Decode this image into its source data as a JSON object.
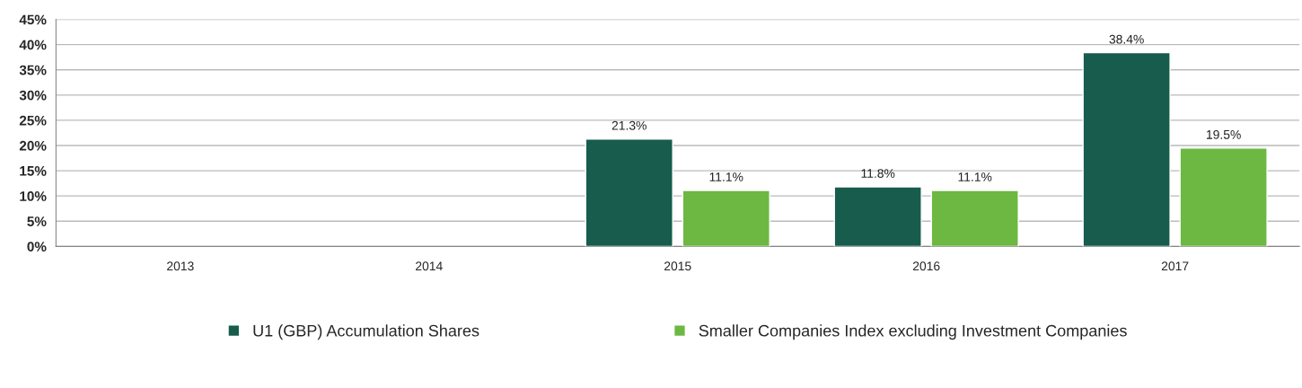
{
  "chart_data": {
    "type": "bar",
    "categories": [
      "2013",
      "2014",
      "2015",
      "2016",
      "2017"
    ],
    "series": [
      {
        "name": "U1 (GBP) Accumulation Shares",
        "color": "#175c4c",
        "values": [
          null,
          null,
          21.3,
          11.8,
          38.4
        ],
        "value_labels": [
          null,
          null,
          "21.3%",
          "11.8%",
          "38.4%"
        ]
      },
      {
        "name": "Smaller Companies Index excluding Investment Companies",
        "color": "#6db843",
        "values": [
          null,
          null,
          11.1,
          11.1,
          19.5
        ],
        "value_labels": [
          null,
          null,
          "11.1%",
          "11.1%",
          "19.5%"
        ]
      }
    ],
    "ylim": [
      0,
      45
    ],
    "yticks": [
      {
        "value": 0,
        "label": "0%"
      },
      {
        "value": 5,
        "label": "5%"
      },
      {
        "value": 10,
        "label": "10%"
      },
      {
        "value": 15,
        "label": "15%"
      },
      {
        "value": 20,
        "label": "20%"
      },
      {
        "value": 25,
        "label": "25%"
      },
      {
        "value": 30,
        "label": "30%"
      },
      {
        "value": 35,
        "label": "35%"
      },
      {
        "value": 40,
        "label": "40%"
      },
      {
        "value": 45,
        "label": "45%"
      }
    ],
    "grid": "y",
    "legend": "bottom"
  }
}
